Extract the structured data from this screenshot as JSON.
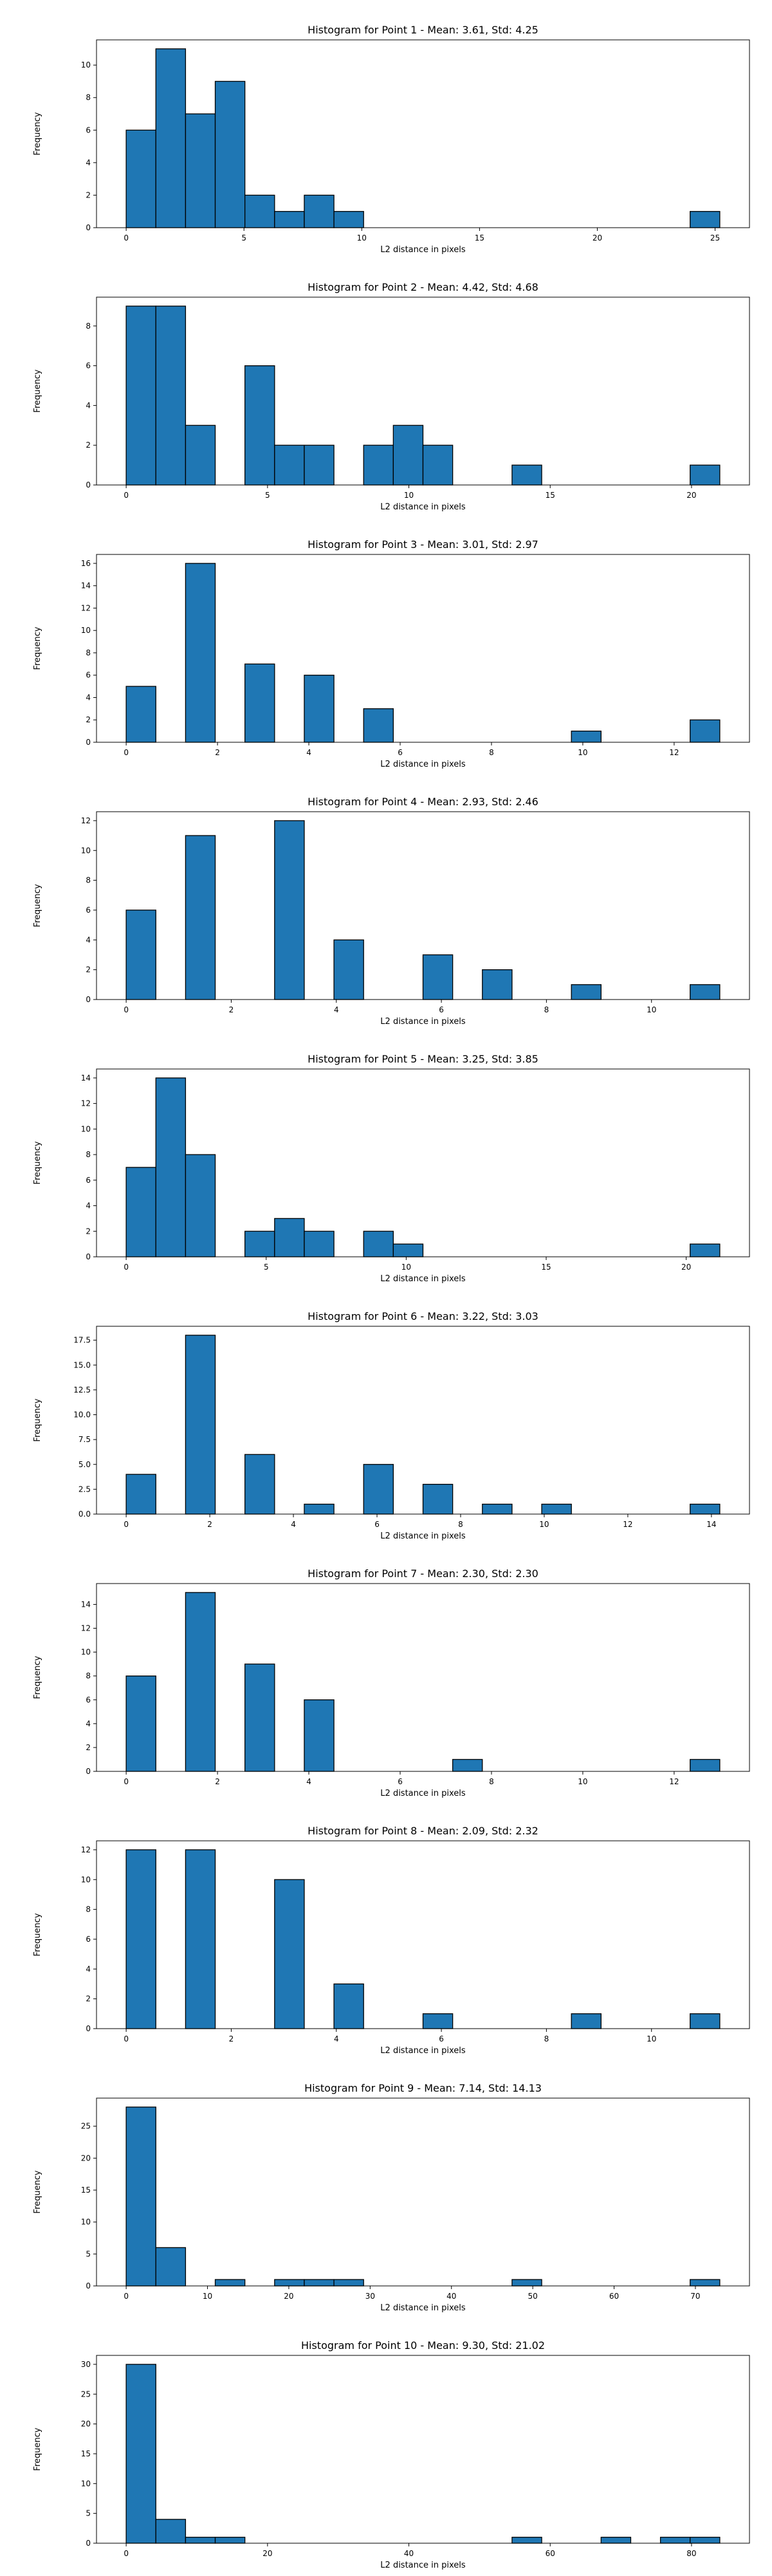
{
  "chart_data": [
    {
      "type": "bar",
      "title": "Histogram for Point 1 - Mean: 3.61, Std: 4.25",
      "xlabel": "L2 distance in pixels",
      "ylabel": "Frequency",
      "bar_color": "#1f77b4",
      "edge_color": "#000000",
      "xlim": [
        -1.26,
        26.46
      ],
      "ylim": [
        0,
        11.55
      ],
      "xticks": [
        0,
        5,
        10,
        15,
        20,
        25
      ],
      "yticks": [
        0,
        2,
        4,
        6,
        8,
        10
      ],
      "bins": [
        {
          "x0": 0,
          "x1": 1.26,
          "count": 6
        },
        {
          "x0": 1.26,
          "x1": 2.52,
          "count": 11
        },
        {
          "x0": 2.52,
          "x1": 3.78,
          "count": 7
        },
        {
          "x0": 3.78,
          "x1": 5.04,
          "count": 9
        },
        {
          "x0": 5.04,
          "x1": 6.3,
          "count": 2
        },
        {
          "x0": 6.3,
          "x1": 7.56,
          "count": 1
        },
        {
          "x0": 7.56,
          "x1": 8.82,
          "count": 2
        },
        {
          "x0": 8.82,
          "x1": 10.08,
          "count": 1
        },
        {
          "x0": 23.94,
          "x1": 25.2,
          "count": 1
        }
      ]
    },
    {
      "type": "bar",
      "title": "Histogram for Point 2 - Mean: 4.42, Std: 4.68",
      "xlabel": "L2 distance in pixels",
      "ylabel": "Frequency",
      "bar_color": "#1f77b4",
      "edge_color": "#000000",
      "xlim": [
        -1.05,
        22.05
      ],
      "ylim": [
        0,
        9.45
      ],
      "xticks": [
        0,
        5,
        10,
        15,
        20
      ],
      "yticks": [
        0,
        2,
        4,
        6,
        8
      ],
      "bins": [
        {
          "x0": 0,
          "x1": 1.05,
          "count": 9
        },
        {
          "x0": 1.05,
          "x1": 2.1,
          "count": 9
        },
        {
          "x0": 2.1,
          "x1": 3.15,
          "count": 3
        },
        {
          "x0": 4.2,
          "x1": 5.25,
          "count": 6
        },
        {
          "x0": 5.25,
          "x1": 6.3,
          "count": 2
        },
        {
          "x0": 6.3,
          "x1": 7.35,
          "count": 2
        },
        {
          "x0": 8.4,
          "x1": 9.45,
          "count": 2
        },
        {
          "x0": 9.45,
          "x1": 10.5,
          "count": 3
        },
        {
          "x0": 10.5,
          "x1": 11.55,
          "count": 2
        },
        {
          "x0": 13.65,
          "x1": 14.7,
          "count": 1
        },
        {
          "x0": 19.95,
          "x1": 21.0,
          "count": 1
        }
      ]
    },
    {
      "type": "bar",
      "title": "Histogram for Point 3 - Mean: 3.01, Std: 2.97",
      "xlabel": "L2 distance in pixels",
      "ylabel": "Frequency",
      "bar_color": "#1f77b4",
      "edge_color": "#000000",
      "xlim": [
        -0.65,
        13.65
      ],
      "ylim": [
        0,
        16.8
      ],
      "xticks": [
        0,
        2,
        4,
        6,
        8,
        10,
        12
      ],
      "yticks": [
        0,
        2,
        4,
        6,
        8,
        10,
        12,
        14,
        16
      ],
      "bins": [
        {
          "x0": 0,
          "x1": 0.65,
          "count": 5
        },
        {
          "x0": 1.3,
          "x1": 1.95,
          "count": 16
        },
        {
          "x0": 2.6,
          "x1": 3.25,
          "count": 7
        },
        {
          "x0": 3.9,
          "x1": 4.55,
          "count": 6
        },
        {
          "x0": 5.2,
          "x1": 5.85,
          "count": 3
        },
        {
          "x0": 9.75,
          "x1": 10.4,
          "count": 1
        },
        {
          "x0": 12.35,
          "x1": 13.0,
          "count": 2
        }
      ]
    },
    {
      "type": "bar",
      "title": "Histogram for Point 4 - Mean: 2.93, Std: 2.46",
      "xlabel": "L2 distance in pixels",
      "ylabel": "Frequency",
      "bar_color": "#1f77b4",
      "edge_color": "#000000",
      "xlim": [
        -0.565,
        11.865
      ],
      "ylim": [
        0,
        12.6
      ],
      "xticks": [
        0,
        2,
        4,
        6,
        8,
        10
      ],
      "yticks": [
        0,
        2,
        4,
        6,
        8,
        10,
        12
      ],
      "bins": [
        {
          "x0": 0,
          "x1": 0.565,
          "count": 6
        },
        {
          "x0": 1.13,
          "x1": 1.695,
          "count": 11
        },
        {
          "x0": 2.825,
          "x1": 3.39,
          "count": 12
        },
        {
          "x0": 3.955,
          "x1": 4.52,
          "count": 4
        },
        {
          "x0": 5.65,
          "x1": 6.215,
          "count": 3
        },
        {
          "x0": 6.78,
          "x1": 7.345,
          "count": 2
        },
        {
          "x0": 8.475,
          "x1": 9.04,
          "count": 1
        },
        {
          "x0": 10.735,
          "x1": 11.3,
          "count": 1
        }
      ]
    },
    {
      "type": "bar",
      "title": "Histogram for Point 5 - Mean: 3.25, Std: 3.85",
      "xlabel": "L2 distance in pixels",
      "ylabel": "Frequency",
      "bar_color": "#1f77b4",
      "edge_color": "#000000",
      "xlim": [
        -1.06,
        22.26
      ],
      "ylim": [
        0,
        14.7
      ],
      "xticks": [
        0,
        5,
        10,
        15,
        20
      ],
      "yticks": [
        0,
        2,
        4,
        6,
        8,
        10,
        12,
        14
      ],
      "bins": [
        {
          "x0": 0,
          "x1": 1.06,
          "count": 7
        },
        {
          "x0": 1.06,
          "x1": 2.12,
          "count": 14
        },
        {
          "x0": 2.12,
          "x1": 3.18,
          "count": 8
        },
        {
          "x0": 4.24,
          "x1": 5.3,
          "count": 2
        },
        {
          "x0": 5.3,
          "x1": 6.36,
          "count": 3
        },
        {
          "x0": 6.36,
          "x1": 7.42,
          "count": 2
        },
        {
          "x0": 8.48,
          "x1": 9.54,
          "count": 2
        },
        {
          "x0": 9.54,
          "x1": 10.6,
          "count": 1
        },
        {
          "x0": 20.14,
          "x1": 21.2,
          "count": 1
        }
      ]
    },
    {
      "type": "bar",
      "title": "Histogram for Point 6 - Mean: 3.22, Std: 3.03",
      "xlabel": "L2 distance in pixels",
      "ylabel": "Frequency",
      "bar_color": "#1f77b4",
      "edge_color": "#000000",
      "xlim": [
        -0.71,
        14.91
      ],
      "ylim": [
        0,
        18.9
      ],
      "xticks": [
        0,
        2,
        4,
        6,
        8,
        10,
        12,
        14
      ],
      "yticks": [
        0,
        2.5,
        5.0,
        7.5,
        10.0,
        12.5,
        15.0,
        17.5
      ],
      "ytick_labels": [
        "0.0",
        "2.5",
        "5.0",
        "7.5",
        "10.0",
        "12.5",
        "15.0",
        "17.5"
      ],
      "bins": [
        {
          "x0": 0,
          "x1": 0.71,
          "count": 4
        },
        {
          "x0": 1.42,
          "x1": 2.13,
          "count": 18
        },
        {
          "x0": 2.84,
          "x1": 3.55,
          "count": 6
        },
        {
          "x0": 4.26,
          "x1": 4.97,
          "count": 1
        },
        {
          "x0": 5.68,
          "x1": 6.39,
          "count": 5
        },
        {
          "x0": 7.1,
          "x1": 7.81,
          "count": 3
        },
        {
          "x0": 8.52,
          "x1": 9.23,
          "count": 1
        },
        {
          "x0": 9.94,
          "x1": 10.65,
          "count": 1
        },
        {
          "x0": 13.49,
          "x1": 14.2,
          "count": 1
        }
      ]
    },
    {
      "type": "bar",
      "title": "Histogram for Point 7 - Mean: 2.30, Std: 2.30",
      "xlabel": "L2 distance in pixels",
      "ylabel": "Frequency",
      "bar_color": "#1f77b4",
      "edge_color": "#000000",
      "xlim": [
        -0.65,
        13.65
      ],
      "ylim": [
        0,
        15.75
      ],
      "xticks": [
        0,
        2,
        4,
        6,
        8,
        10,
        12
      ],
      "yticks": [
        0,
        2,
        4,
        6,
        8,
        10,
        12,
        14
      ],
      "bins": [
        {
          "x0": 0,
          "x1": 0.65,
          "count": 8
        },
        {
          "x0": 1.3,
          "x1": 1.95,
          "count": 15
        },
        {
          "x0": 2.6,
          "x1": 3.25,
          "count": 9
        },
        {
          "x0": 3.9,
          "x1": 4.55,
          "count": 6
        },
        {
          "x0": 7.15,
          "x1": 7.8,
          "count": 1
        },
        {
          "x0": 12.35,
          "x1": 13.0,
          "count": 1
        }
      ]
    },
    {
      "type": "bar",
      "title": "Histogram for Point 8 - Mean: 2.09, Std: 2.32",
      "xlabel": "L2 distance in pixels",
      "ylabel": "Frequency",
      "bar_color": "#1f77b4",
      "edge_color": "#000000",
      "xlim": [
        -0.565,
        11.865
      ],
      "ylim": [
        0,
        12.6
      ],
      "xticks": [
        0,
        2,
        4,
        6,
        8,
        10
      ],
      "yticks": [
        0,
        2,
        4,
        6,
        8,
        10,
        12
      ],
      "bins": [
        {
          "x0": 0,
          "x1": 0.565,
          "count": 12
        },
        {
          "x0": 1.13,
          "x1": 1.695,
          "count": 12
        },
        {
          "x0": 2.825,
          "x1": 3.39,
          "count": 10
        },
        {
          "x0": 3.955,
          "x1": 4.52,
          "count": 3
        },
        {
          "x0": 5.65,
          "x1": 6.215,
          "count": 1
        },
        {
          "x0": 8.475,
          "x1": 9.04,
          "count": 1
        },
        {
          "x0": 10.735,
          "x1": 11.3,
          "count": 1
        }
      ]
    },
    {
      "type": "bar",
      "title": "Histogram for Point 9 - Mean: 7.14, Std: 14.13",
      "xlabel": "L2 distance in pixels",
      "ylabel": "Frequency",
      "bar_color": "#1f77b4",
      "edge_color": "#000000",
      "xlim": [
        -3.65,
        76.65
      ],
      "ylim": [
        0,
        29.4
      ],
      "xticks": [
        0,
        10,
        20,
        30,
        40,
        50,
        60,
        70
      ],
      "yticks": [
        0,
        5,
        10,
        15,
        20,
        25
      ],
      "bins": [
        {
          "x0": 0,
          "x1": 3.65,
          "count": 28
        },
        {
          "x0": 3.65,
          "x1": 7.3,
          "count": 6
        },
        {
          "x0": 10.95,
          "x1": 14.6,
          "count": 1
        },
        {
          "x0": 18.25,
          "x1": 21.9,
          "count": 1
        },
        {
          "x0": 21.9,
          "x1": 25.55,
          "count": 1
        },
        {
          "x0": 25.55,
          "x1": 29.2,
          "count": 1
        },
        {
          "x0": 47.45,
          "x1": 51.1,
          "count": 1
        },
        {
          "x0": 69.35,
          "x1": 73.0,
          "count": 1
        }
      ]
    },
    {
      "type": "bar",
      "title": "Histogram for Point 10 - Mean: 9.30, Std: 21.02",
      "xlabel": "L2 distance in pixels",
      "ylabel": "Frequency",
      "bar_color": "#1f77b4",
      "edge_color": "#000000",
      "xlim": [
        -4.2,
        88.2
      ],
      "ylim": [
        0,
        31.5
      ],
      "xticks": [
        0,
        20,
        40,
        60,
        80
      ],
      "yticks": [
        0,
        5,
        10,
        15,
        20,
        25,
        30
      ],
      "bins": [
        {
          "x0": 0,
          "x1": 4.2,
          "count": 30
        },
        {
          "x0": 4.2,
          "x1": 8.4,
          "count": 4
        },
        {
          "x0": 8.4,
          "x1": 12.6,
          "count": 1
        },
        {
          "x0": 12.6,
          "x1": 16.8,
          "count": 1
        },
        {
          "x0": 54.6,
          "x1": 58.8,
          "count": 1
        },
        {
          "x0": 67.2,
          "x1": 71.4,
          "count": 1
        },
        {
          "x0": 75.6,
          "x1": 79.8,
          "count": 1
        },
        {
          "x0": 79.8,
          "x1": 84.0,
          "count": 1
        }
      ]
    }
  ]
}
